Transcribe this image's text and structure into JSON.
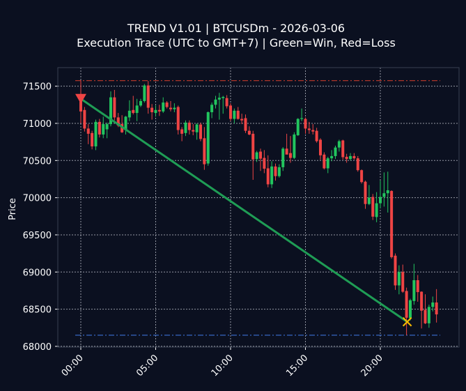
{
  "chart_data": {
    "type": "candlestick",
    "title": "TREND V1.01 | BTCUSDm - 2026-03-06",
    "subtitle": "Execution Trace (UTC to GMT+7) | Green=Win, Red=Loss",
    "xlabel": "",
    "ylabel": "Price",
    "ylim": [
      67990,
      71750
    ],
    "yticks": [
      68000,
      68500,
      69000,
      69500,
      70000,
      70500,
      71000,
      71500
    ],
    "xticks": [
      "00:00",
      "05:00",
      "10:00",
      "15:00",
      "20:00"
    ],
    "grid": true,
    "colors": {
      "background": "#0b1020",
      "up": "#22c55e",
      "down": "#ef4444",
      "trade_win": "#1f9d55",
      "entry_marker": "#ef4444",
      "exit_marker": "#f5b800",
      "upper_level": "#c0392b",
      "lower_level": "#3b6fd4"
    },
    "candle_fields": [
      "time",
      "open",
      "high",
      "low",
      "close"
    ],
    "candles": [
      [
        "00:00",
        71380,
        71580,
        71000,
        71160
      ],
      [
        "00:15",
        71180,
        71220,
        70890,
        70930
      ],
      [
        "00:30",
        70930,
        70990,
        70720,
        70860
      ],
      [
        "00:45",
        70870,
        70900,
        70650,
        70690
      ],
      [
        "01:00",
        70690,
        71050,
        70640,
        71020
      ],
      [
        "01:15",
        71020,
        71060,
        70810,
        70850
      ],
      [
        "01:30",
        70850,
        71090,
        70800,
        70990
      ],
      [
        "01:45",
        70920,
        71010,
        70800,
        70990
      ],
      [
        "02:00",
        70990,
        71430,
        70960,
        71350
      ],
      [
        "02:15",
        71350,
        71450,
        71040,
        71080
      ],
      [
        "02:30",
        71080,
        71140,
        70950,
        70970
      ],
      [
        "02:45",
        70990,
        71110,
        70870,
        70880
      ],
      [
        "03:00",
        70910,
        71100,
        70850,
        71090
      ],
      [
        "03:15",
        71080,
        71310,
        71030,
        71170
      ],
      [
        "03:30",
        71180,
        71370,
        71120,
        71140
      ],
      [
        "03:45",
        71140,
        71330,
        71030,
        71240
      ],
      [
        "04:00",
        71240,
        71330,
        71220,
        71300
      ],
      [
        "04:15",
        71300,
        71530,
        71280,
        71510
      ],
      [
        "04:30",
        71510,
        71570,
        71130,
        71210
      ],
      [
        "04:45",
        71210,
        71260,
        71050,
        71150
      ],
      [
        "05:00",
        71140,
        71240,
        71090,
        71180
      ],
      [
        "05:15",
        71180,
        71250,
        71100,
        71160
      ],
      [
        "05:30",
        71160,
        71350,
        71140,
        71280
      ],
      [
        "05:45",
        71280,
        71300,
        71200,
        71220
      ],
      [
        "06:00",
        71210,
        71300,
        71160,
        71190
      ],
      [
        "06:15",
        71190,
        71270,
        71150,
        71210
      ],
      [
        "06:30",
        71220,
        71240,
        70850,
        70910
      ],
      [
        "06:45",
        70920,
        70950,
        70760,
        70860
      ],
      [
        "07:00",
        70870,
        71040,
        70830,
        71010
      ],
      [
        "07:15",
        71010,
        71040,
        70850,
        70910
      ],
      [
        "07:30",
        70910,
        70990,
        70840,
        70890
      ],
      [
        "07:45",
        70880,
        71000,
        70780,
        70985
      ],
      [
        "08:00",
        70985,
        71010,
        70760,
        70790
      ],
      [
        "08:15",
        70800,
        70950,
        70375,
        70450
      ],
      [
        "08:30",
        70460,
        71160,
        70430,
        71150
      ],
      [
        "08:45",
        71150,
        71280,
        71070,
        71250
      ],
      [
        "09:00",
        71250,
        71370,
        71200,
        71320
      ],
      [
        "09:15",
        71320,
        71410,
        71050,
        71345
      ],
      [
        "09:30",
        71340,
        71370,
        71130,
        71355
      ],
      [
        "09:45",
        71340,
        71380,
        71200,
        71230
      ],
      [
        "10:00",
        71240,
        71270,
        71030,
        71060
      ],
      [
        "10:15",
        71060,
        71200,
        71000,
        71170
      ],
      [
        "10:30",
        71170,
        71220,
        71050,
        71060
      ],
      [
        "10:45",
        71060,
        71130,
        70990,
        71040
      ],
      [
        "11:00",
        71070,
        71120,
        70870,
        70900
      ],
      [
        "11:15",
        70900,
        70960,
        70840,
        70850
      ],
      [
        "11:30",
        70860,
        70900,
        70240,
        70515
      ],
      [
        "11:45",
        70520,
        70630,
        70480,
        70610
      ],
      [
        "12:00",
        70620,
        70660,
        70360,
        70525
      ],
      [
        "12:15",
        70535,
        70640,
        70330,
        70390
      ],
      [
        "12:30",
        70395,
        70570,
        70140,
        70180
      ],
      [
        "12:45",
        70180,
        70490,
        70130,
        70420
      ],
      [
        "13:00",
        70420,
        70460,
        70230,
        70290
      ],
      [
        "13:15",
        70290,
        70450,
        70270,
        70410
      ],
      [
        "13:30",
        70410,
        70680,
        70360,
        70660
      ],
      [
        "13:45",
        70660,
        70860,
        70610,
        70580
      ],
      [
        "14:00",
        70600,
        70830,
        70470,
        70535
      ],
      [
        "14:15",
        70535,
        70880,
        70520,
        70850
      ],
      [
        "14:30",
        70840,
        71070,
        70830,
        71060
      ],
      [
        "14:45",
        71060,
        71200,
        71030,
        71070
      ],
      [
        "15:00",
        71060,
        71080,
        70860,
        70930
      ],
      [
        "15:15",
        70930,
        71020,
        70860,
        70910
      ],
      [
        "15:30",
        70910,
        70990,
        70850,
        70890
      ],
      [
        "15:45",
        70900,
        70940,
        70740,
        70760
      ],
      [
        "16:00",
        70780,
        70800,
        70510,
        70570
      ],
      [
        "16:15",
        70580,
        70610,
        70380,
        70395
      ],
      [
        "16:30",
        70395,
        70550,
        70330,
        70530
      ],
      [
        "16:45",
        70530,
        70640,
        70490,
        70560
      ],
      [
        "17:00",
        70560,
        70700,
        70520,
        70675
      ],
      [
        "17:15",
        70675,
        70780,
        70620,
        70760
      ],
      [
        "17:30",
        70770,
        70780,
        70510,
        70545
      ],
      [
        "17:45",
        70550,
        70590,
        70470,
        70520
      ],
      [
        "18:00",
        70520,
        70600,
        70500,
        70560
      ],
      [
        "18:15",
        70560,
        70600,
        70510,
        70530
      ],
      [
        "18:30",
        70530,
        70560,
        70350,
        70370
      ],
      [
        "18:45",
        70370,
        70380,
        70190,
        70210
      ],
      [
        "19:00",
        70215,
        70230,
        69850,
        69915
      ],
      [
        "19:15",
        69915,
        70170,
        69900,
        70000
      ],
      [
        "19:30",
        70010,
        70050,
        69700,
        69745
      ],
      [
        "19:45",
        69740,
        70075,
        69670,
        69925
      ],
      [
        "20:00",
        69925,
        70230,
        69860,
        70010
      ],
      [
        "20:15",
        70010,
        70340,
        69880,
        70060
      ],
      [
        "20:30",
        70060,
        70350,
        69800,
        70100
      ],
      [
        "20:45",
        70090,
        70100,
        69180,
        69200
      ],
      [
        "21:00",
        69220,
        69250,
        68760,
        68820
      ],
      [
        "21:15",
        68820,
        69090,
        68700,
        69000
      ],
      [
        "21:30",
        69000,
        69100,
        68720,
        68735
      ],
      [
        "21:45",
        68745,
        68790,
        68150,
        68385
      ],
      [
        "22:00",
        68380,
        68640,
        68350,
        68620
      ],
      [
        "22:15",
        68610,
        69110,
        68560,
        68890
      ],
      [
        "22:30",
        68890,
        68960,
        68600,
        68730
      ],
      [
        "22:45",
        68735,
        68740,
        68240,
        68480
      ],
      [
        "23:00",
        68490,
        68700,
        68300,
        68310
      ],
      [
        "23:15",
        68310,
        68560,
        68250,
        68530
      ],
      [
        "23:30",
        68530,
        68670,
        68470,
        68590
      ],
      [
        "23:45",
        68590,
        68770,
        68320,
        68430
      ]
    ],
    "trade": {
      "side": "sell",
      "result": "win",
      "entry_time": "00:00",
      "entry_price": 71330,
      "exit_time": "21:45",
      "exit_price": 68330
    },
    "levels": [
      {
        "kind": "upper",
        "price": 71575,
        "style": "dash-dot"
      },
      {
        "kind": "lower",
        "price": 68150,
        "style": "dash-dot"
      }
    ]
  }
}
